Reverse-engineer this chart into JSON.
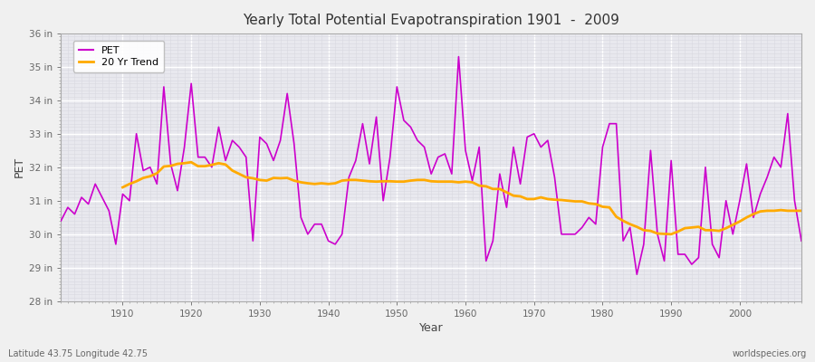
{
  "title": "Yearly Total Potential Evapotranspiration 1901  -  2009",
  "xlabel": "Year",
  "ylabel": "PET",
  "subtitle_left": "Latitude 43.75 Longitude 42.75",
  "subtitle_right": "worldspecies.org",
  "ylim": [
    28,
    36
  ],
  "xlim": [
    1901,
    2009
  ],
  "yticks": [
    28,
    29,
    30,
    31,
    32,
    33,
    34,
    35,
    36
  ],
  "ytick_labels": [
    "28 in",
    "29 in",
    "30 in",
    "31 in",
    "32 in",
    "33 in",
    "34 in",
    "35 in",
    "36 in"
  ],
  "xticks": [
    1910,
    1920,
    1930,
    1940,
    1950,
    1960,
    1970,
    1980,
    1990,
    2000
  ],
  "pet_color": "#cc00cc",
  "trend_color": "#ffaa00",
  "background_color": "#f0f0f0",
  "plot_bg_color": "#e8e8ee",
  "grid_color": "#ffffff",
  "minor_grid_color": "#d8d8e0",
  "legend_labels": [
    "PET",
    "20 Yr Trend"
  ],
  "years": [
    1901,
    1902,
    1903,
    1904,
    1905,
    1906,
    1907,
    1908,
    1909,
    1910,
    1911,
    1912,
    1913,
    1914,
    1915,
    1916,
    1917,
    1918,
    1919,
    1920,
    1921,
    1922,
    1923,
    1924,
    1925,
    1926,
    1927,
    1928,
    1929,
    1930,
    1931,
    1932,
    1933,
    1934,
    1935,
    1936,
    1937,
    1938,
    1939,
    1940,
    1941,
    1942,
    1943,
    1944,
    1945,
    1946,
    1947,
    1948,
    1949,
    1950,
    1951,
    1952,
    1953,
    1954,
    1955,
    1956,
    1957,
    1958,
    1959,
    1960,
    1961,
    1962,
    1963,
    1964,
    1965,
    1966,
    1967,
    1968,
    1969,
    1970,
    1971,
    1972,
    1973,
    1974,
    1975,
    1976,
    1977,
    1978,
    1979,
    1980,
    1981,
    1982,
    1983,
    1984,
    1985,
    1986,
    1987,
    1988,
    1989,
    1990,
    1991,
    1992,
    1993,
    1994,
    1995,
    1996,
    1997,
    1998,
    1999,
    2000,
    2001,
    2002,
    2003,
    2004,
    2005,
    2006,
    2007,
    2008,
    2009
  ],
  "pet_values": [
    30.4,
    30.8,
    30.6,
    31.1,
    30.9,
    31.5,
    31.1,
    30.7,
    29.7,
    31.2,
    31.0,
    33.0,
    31.9,
    32.0,
    31.5,
    34.4,
    32.1,
    31.3,
    32.6,
    34.5,
    32.3,
    32.3,
    32.0,
    33.2,
    32.2,
    32.8,
    32.6,
    32.3,
    29.8,
    32.9,
    32.7,
    32.2,
    32.8,
    34.2,
    32.7,
    30.5,
    30.0,
    30.3,
    30.3,
    29.8,
    29.7,
    30.0,
    31.7,
    32.2,
    33.3,
    32.1,
    33.5,
    31.0,
    32.3,
    34.4,
    33.4,
    33.2,
    32.8,
    32.6,
    31.8,
    32.3,
    32.4,
    31.8,
    35.3,
    32.5,
    31.6,
    32.6,
    29.2,
    29.8,
    31.8,
    30.8,
    32.6,
    31.5,
    32.9,
    33.0,
    32.6,
    32.8,
    31.7,
    30.0,
    30.0,
    30.0,
    30.2,
    30.5,
    30.3,
    32.6,
    33.3,
    33.3,
    29.8,
    30.2,
    28.8,
    29.7,
    32.5,
    30.0,
    29.2,
    32.2,
    29.4,
    29.4,
    29.1,
    29.3,
    32.0,
    29.7,
    29.3,
    31.0,
    30.0,
    31.0,
    32.1,
    30.5,
    31.2,
    31.7,
    32.3,
    32.0,
    33.6,
    31.0,
    29.8
  ],
  "trend_years": [
    1910,
    1911,
    1912,
    1913,
    1914,
    1915,
    1916,
    1917,
    1918,
    1919,
    1920,
    1921,
    1922,
    1923,
    1924,
    1925,
    1926,
    1927,
    1928,
    1929,
    1930,
    1931,
    1932,
    1933,
    1934,
    1935,
    1936,
    1937,
    1938,
    1939,
    1940,
    1941,
    1942,
    1943,
    1944,
    1945,
    1946,
    1947,
    1948,
    1949,
    1950,
    1951,
    1952,
    1953,
    1954,
    1955,
    1956,
    1957,
    1958,
    1959,
    1960,
    1961,
    1962,
    1963,
    1964,
    1965,
    1966,
    1967,
    1968,
    1969,
    1970,
    1971,
    1972,
    1973,
    1974,
    1975,
    1976,
    1977,
    1978,
    1979,
    1980,
    1981,
    1982,
    1983,
    1984,
    1985,
    1986,
    1987,
    1988,
    1989,
    1990,
    1991,
    1992,
    1993,
    1994,
    1995,
    1996,
    1997,
    1998,
    1999,
    2000,
    2001,
    2002,
    2003,
    2004,
    2005,
    2006,
    2007,
    2008,
    2009
  ],
  "trend_values": [
    31.4,
    31.5,
    31.58,
    31.68,
    31.73,
    31.82,
    32.02,
    32.04,
    32.1,
    32.12,
    32.15,
    32.03,
    32.03,
    32.07,
    32.12,
    32.08,
    31.9,
    31.8,
    31.7,
    31.67,
    31.62,
    31.6,
    31.68,
    31.67,
    31.68,
    31.6,
    31.55,
    31.52,
    31.5,
    31.52,
    31.5,
    31.52,
    31.6,
    31.62,
    31.62,
    31.6,
    31.58,
    31.57,
    31.58,
    31.58,
    31.57,
    31.57,
    31.6,
    31.62,
    31.62,
    31.58,
    31.57,
    31.57,
    31.57,
    31.55,
    31.57,
    31.55,
    31.45,
    31.43,
    31.35,
    31.35,
    31.25,
    31.15,
    31.13,
    31.05,
    31.05,
    31.1,
    31.05,
    31.03,
    31.02,
    31.0,
    30.98,
    30.98,
    30.92,
    30.9,
    30.82,
    30.8,
    30.52,
    30.4,
    30.3,
    30.22,
    30.12,
    30.1,
    30.02,
    30.01,
    30.0,
    30.08,
    30.18,
    30.2,
    30.22,
    30.12,
    30.12,
    30.1,
    30.18,
    30.28,
    30.38,
    30.5,
    30.6,
    30.68,
    30.7,
    30.7,
    30.72,
    30.7,
    30.7,
    30.7
  ]
}
